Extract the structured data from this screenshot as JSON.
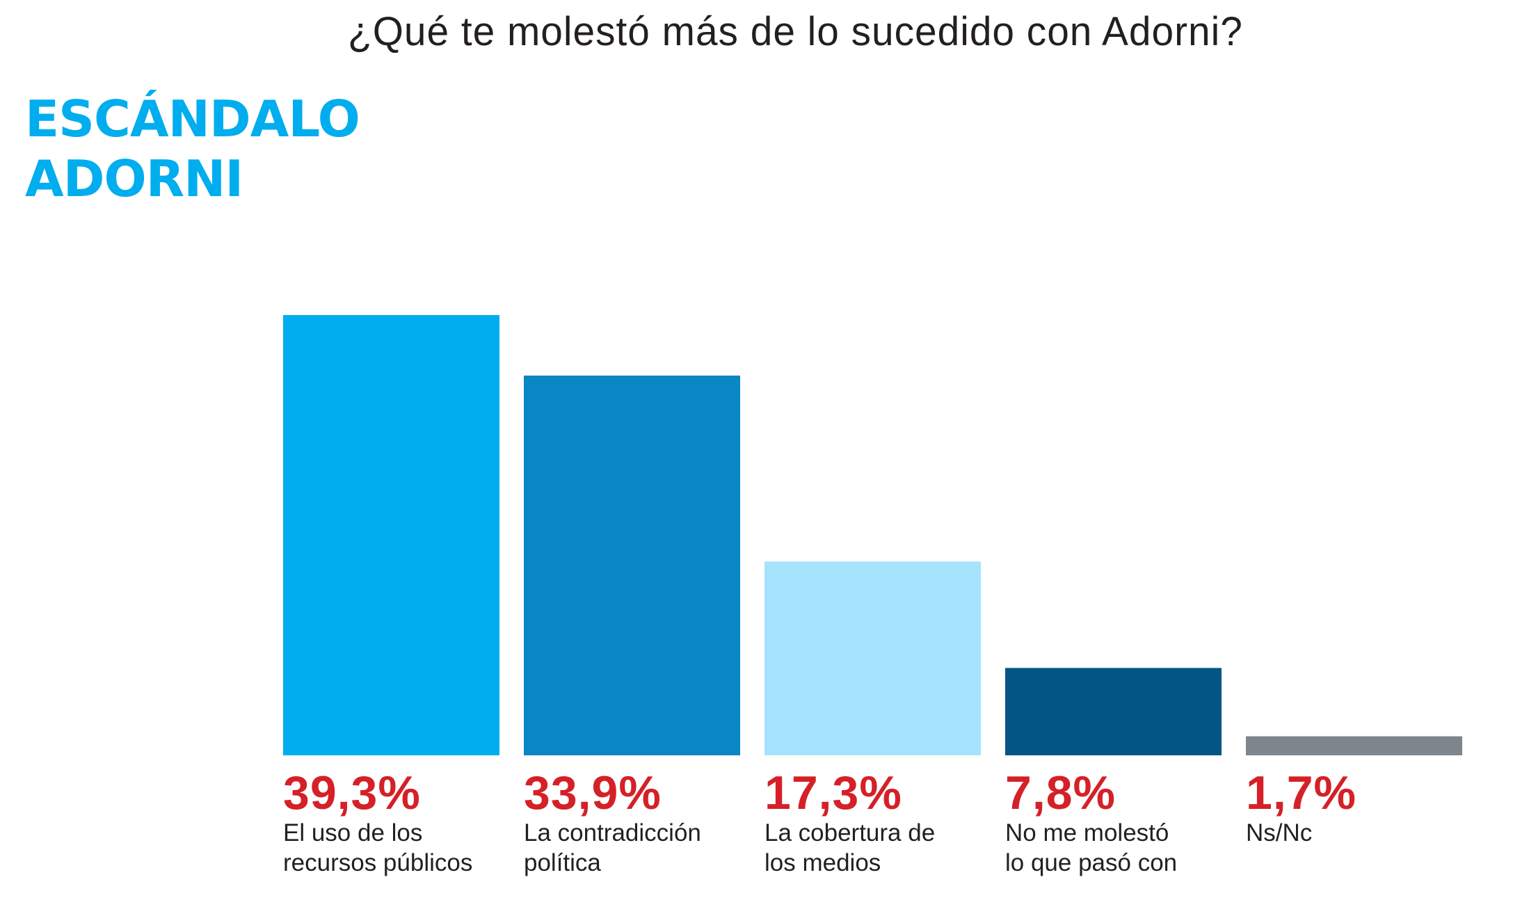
{
  "header": {
    "title": "¿Qué te molestó más de lo sucedido con Adorni?",
    "kicker_line1": "ESCÁNDALO",
    "kicker_line2": "ADORNI"
  },
  "colors": {
    "kicker": "#00adee",
    "value_text": "#d52027",
    "label_text": "#231f20"
  },
  "chart_data": {
    "type": "bar",
    "title": "¿Qué te molestó más de lo sucedido con Adorni?",
    "xlabel": "",
    "ylabel": "",
    "ylim": [
      0,
      40
    ],
    "grid": false,
    "legend": "none",
    "categories": [
      "El uso de los recursos públicos",
      "La contradicción política",
      "La cobertura de los medios",
      "No me molestó lo que pasó con",
      "Ns/Nc"
    ],
    "values": [
      39.3,
      33.9,
      17.3,
      7.8,
      1.7
    ],
    "value_labels": [
      "39,3%",
      "33,9%",
      "17,3%",
      "7,8%",
      "1,7%"
    ],
    "label_lines": [
      [
        "El uso de los",
        "recursos públicos"
      ],
      [
        "La contradicción",
        "política"
      ],
      [
        "La cobertura de",
        "los medios"
      ],
      [
        "No me molestó",
        "lo que pasó con"
      ],
      [
        "Ns/Nc"
      ]
    ],
    "bar_colors": [
      "#00adee",
      "#0a86c5",
      "#a5e3fe",
      "#035683",
      "#7c868c"
    ]
  }
}
